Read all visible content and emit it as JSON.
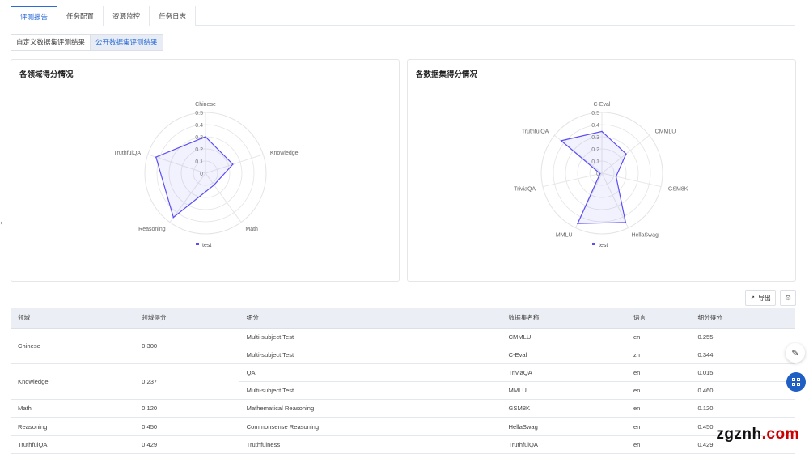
{
  "tabs": [
    {
      "label": "评测报告",
      "active": true
    },
    {
      "label": "任务配置"
    },
    {
      "label": "资源监控"
    },
    {
      "label": "任务日志"
    }
  ],
  "subtabs": [
    {
      "label": "自定义数据集评测结果"
    },
    {
      "label": "公开数据集评测结果",
      "active": true
    }
  ],
  "toolbar": {
    "export_label": "导出",
    "export_icon": "external-link-icon",
    "settings_icon": "gear-icon"
  },
  "accent": "#2b6bd6",
  "chart_data": [
    {
      "type": "radar",
      "title": "各领域得分情况",
      "axes": [
        "Chinese",
        "Knowledge",
        "Math",
        "Reasoning",
        "TruthfulQA"
      ],
      "range": [
        0,
        0.5
      ],
      "ticks": [
        "0",
        "0.1",
        "0.2",
        "0.3",
        "0.4",
        "0.5"
      ],
      "series": [
        {
          "name": "test",
          "values": [
            0.3,
            0.237,
            0.12,
            0.45,
            0.429
          ],
          "color": "#5b4ef5"
        }
      ],
      "legend": "bottom"
    },
    {
      "type": "radar",
      "title": "各数据集得分情况",
      "axes": [
        "C-Eval",
        "CMMLU",
        "GSM8K",
        "HellaSwag",
        "MMLU",
        "TriviaQA",
        "TruthfulQA"
      ],
      "range": [
        0,
        0.5
      ],
      "ticks": [
        "0",
        "0.1",
        "0.2",
        "0.3",
        "0.4",
        "0.5"
      ],
      "series": [
        {
          "name": "test",
          "values": [
            0.344,
            0.255,
            0.12,
            0.45,
            0.46,
            0.015,
            0.429
          ],
          "color": "#5b4ef5"
        }
      ],
      "legend": "bottom"
    }
  ],
  "table": {
    "headers": [
      "领域",
      "领域得分",
      "细分",
      "数据集名称",
      "语言",
      "细分得分"
    ],
    "groups": [
      {
        "domain": "Chinese",
        "score": "0.300",
        "rows": [
          [
            "Multi-subject Test",
            "CMMLU",
            "en",
            "0.255"
          ],
          [
            "Multi-subject Test",
            "C-Eval",
            "zh",
            "0.344"
          ]
        ]
      },
      {
        "domain": "Knowledge",
        "score": "0.237",
        "rows": [
          [
            "QA",
            "TriviaQA",
            "en",
            "0.015"
          ],
          [
            "Multi-subject Test",
            "MMLU",
            "en",
            "0.460"
          ]
        ]
      },
      {
        "domain": "Math",
        "score": "0.120",
        "rows": [
          [
            "Mathematical Reasoning",
            "GSM8K",
            "en",
            "0.120"
          ]
        ]
      },
      {
        "domain": "Reasoning",
        "score": "0.450",
        "rows": [
          [
            "Commonsense Reasoning",
            "HellaSwag",
            "en",
            "0.450"
          ]
        ]
      },
      {
        "domain": "TruthfulQA",
        "score": "0.429",
        "rows": [
          [
            "Truthfulness",
            "TruthfulQA",
            "en",
            "0.429"
          ]
        ]
      }
    ]
  },
  "watermark": {
    "a": "zgznh",
    "b": ".com"
  }
}
